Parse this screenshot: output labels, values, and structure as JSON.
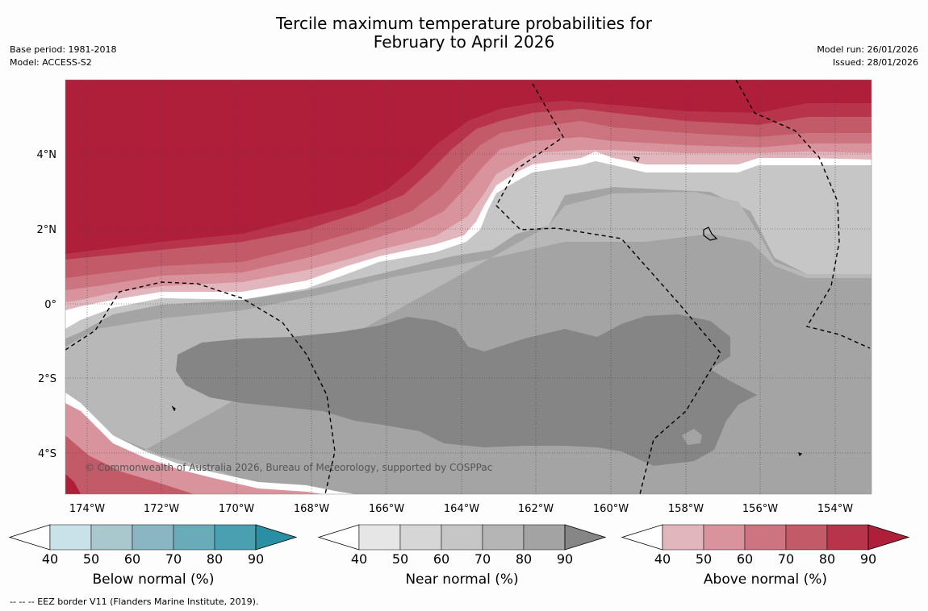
{
  "header": {
    "title_line1": "Tercile maximum temperature probabilities for",
    "title_line2": "February to April 2026",
    "base_period": "Base period: 1981-2018",
    "model": "Model: ACCESS-S2",
    "model_run": "Model run: 26/01/2026",
    "issued": "Issued: 28/01/2026"
  },
  "map": {
    "lat_labels": [
      "4°N",
      "2°N",
      "0°",
      "2°S",
      "4°S"
    ],
    "lon_labels": [
      "174°W",
      "172°W",
      "170°W",
      "168°W",
      "166°W",
      "164°W",
      "162°W",
      "160°W",
      "158°W",
      "156°W",
      "154°W"
    ],
    "copyright": "© Commonwealth of Australia 2026, Bureau of Meteorology, supported by COSPPac"
  },
  "legends": [
    {
      "label": "Below normal (%)",
      "ticks": [
        "40",
        "50",
        "60",
        "70",
        "80",
        "90"
      ],
      "colors": [
        "#ffffff",
        "#c9e1e8",
        "#a9c8cd",
        "#8ab6c3",
        "#6aabba",
        "#4a9fb0",
        "#2a8fa4"
      ]
    },
    {
      "label": "Near normal (%)",
      "ticks": [
        "40",
        "50",
        "60",
        "70",
        "80",
        "90"
      ],
      "colors": [
        "#ffffff",
        "#e6e6e6",
        "#d6d6d6",
        "#c6c6c6",
        "#b5b5b5",
        "#a3a3a3",
        "#868686"
      ]
    },
    {
      "label": "Above normal (%)",
      "ticks": [
        "40",
        "50",
        "60",
        "70",
        "80",
        "90"
      ],
      "colors": [
        "#ffffff",
        "#e2b6bd",
        "#d8939d",
        "#cc7581",
        "#c25a68",
        "#b8344a",
        "#b01f3a"
      ]
    }
  ],
  "footnote": "--  --  -- EEZ border V11 (Flanders Marine Institute, 2019)."
}
